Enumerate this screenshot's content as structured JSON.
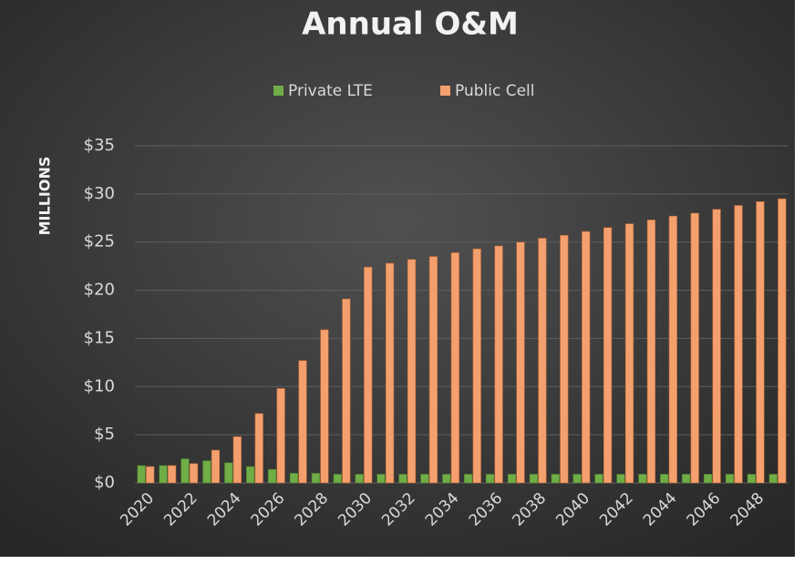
{
  "chart_data": {
    "type": "bar",
    "title": "Annual O&M",
    "ylabel": "MILLIONS",
    "categories": [
      "2020",
      null,
      "2022",
      null,
      "2024",
      null,
      "2026",
      null,
      "2028",
      null,
      "2030",
      null,
      "2032",
      null,
      "2034",
      null,
      "2036",
      null,
      "2038",
      null,
      "2040",
      null,
      "2042",
      null,
      "2044",
      null,
      "2046",
      null,
      "2048",
      null
    ],
    "series": [
      {
        "name": "Private LTE",
        "color": "#70ad47",
        "values": [
          1.8,
          1.8,
          2.5,
          2.3,
          2.1,
          1.7,
          1.4,
          1.0,
          1.0,
          0.9,
          0.9,
          0.9,
          0.9,
          0.9,
          0.9,
          0.9,
          0.9,
          0.9,
          0.9,
          0.9,
          0.9,
          0.9,
          0.9,
          0.9,
          0.9,
          0.9,
          0.9,
          0.9,
          0.9,
          0.9
        ]
      },
      {
        "name": "Public Cell",
        "color": "#f4a06e",
        "values": [
          1.7,
          1.8,
          2.0,
          3.4,
          4.8,
          7.2,
          9.8,
          12.7,
          15.9,
          19.1,
          22.4,
          22.8,
          23.2,
          23.5,
          23.9,
          24.3,
          24.6,
          25.0,
          25.4,
          25.7,
          26.1,
          26.5,
          26.9,
          27.3,
          27.7,
          28.0,
          28.4,
          28.8,
          29.2,
          29.5
        ]
      }
    ],
    "ylim": [
      0,
      35
    ],
    "yticks": [
      {
        "value": 0,
        "label": "$0"
      },
      {
        "value": 5,
        "label": "$5"
      },
      {
        "value": 10,
        "label": "$10"
      },
      {
        "value": 15,
        "label": "$15"
      },
      {
        "value": 20,
        "label": "$20"
      },
      {
        "value": 25,
        "label": "$25"
      },
      {
        "value": 30,
        "label": "$30"
      },
      {
        "value": 35,
        "label": "$35"
      }
    ],
    "grid": true,
    "legend": "top"
  }
}
